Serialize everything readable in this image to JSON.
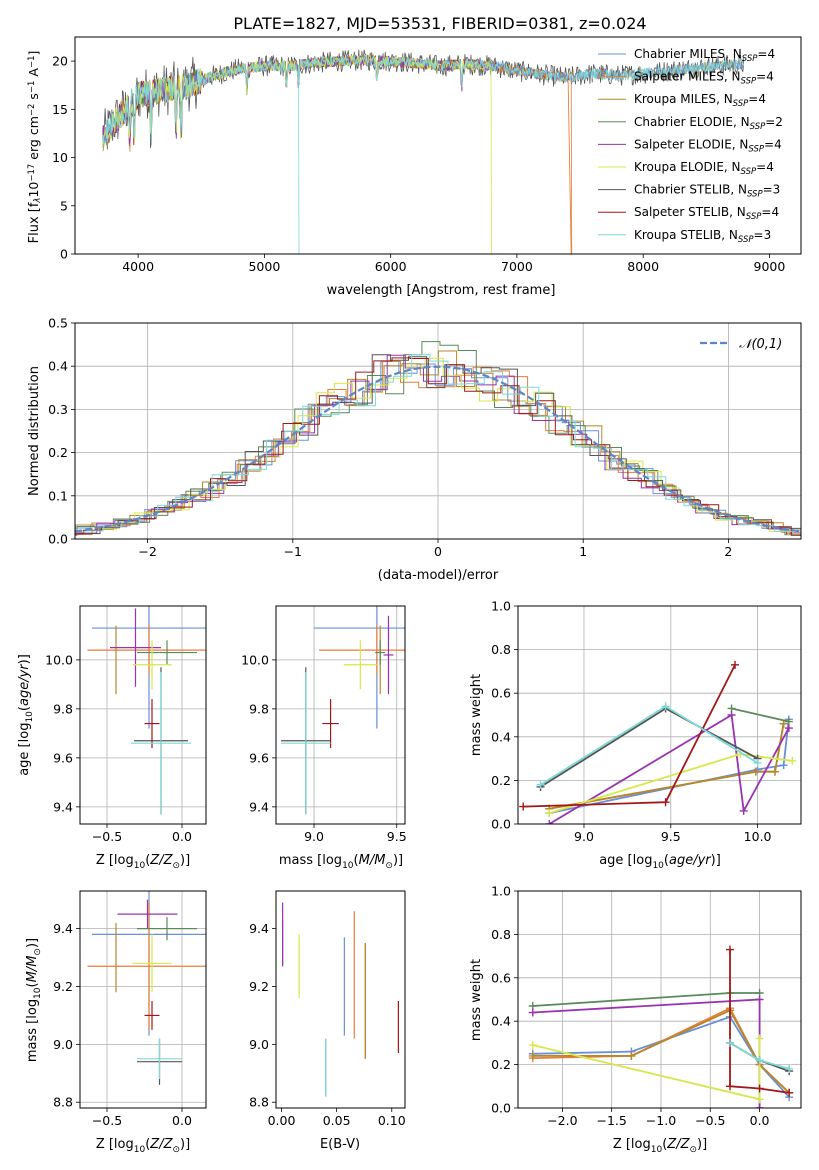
{
  "figure_title": "PLATE=1827, MJD=53531, FIBERID=0381, z=0.024",
  "colors": {
    "Chabrier MILES": "#6a8fd8",
    "Salpeter MILES": "#e87e3a",
    "Kroupa MILES": "#b5892b",
    "Chabrier ELODIE": "#5a8a5a",
    "Salpeter ELODIE": "#9a32b0",
    "Kroupa ELODIE": "#d6e84a",
    "Chabrier STELIB": "#555555",
    "Salpeter STELIB": "#a01818",
    "Kroupa STELIB": "#7fd8d8",
    "grid": "#b0b0b0"
  },
  "chart_data": [
    {
      "id": "spectrum",
      "type": "line",
      "xlabel": "wavelength [Angstrom, rest frame]",
      "ylabel": "Flux [f",
      "xlim": [
        3500,
        9250
      ],
      "ylim": [
        0,
        22.5
      ],
      "xticks": [
        4000,
        5000,
        6000,
        7000,
        8000,
        9000
      ],
      "yticks": [
        0,
        5,
        10,
        15,
        20
      ],
      "grid": false,
      "legend_position": "top-right",
      "legend": [
        {
          "model": "Chabrier MILES",
          "nssp": "4"
        },
        {
          "model": "Salpeter MILES",
          "nssp": "4"
        },
        {
          "model": "Kroupa MILES",
          "nssp": "4"
        },
        {
          "model": "Chabrier ELODIE",
          "nssp": "2"
        },
        {
          "model": "Salpeter ELODIE",
          "nssp": "4"
        },
        {
          "model": "Kroupa ELODIE",
          "nssp": "4"
        },
        {
          "model": "Chabrier STELIB",
          "nssp": "3"
        },
        {
          "model": "Salpeter STELIB",
          "nssp": "4"
        },
        {
          "model": "Kroupa STELIB",
          "nssp": "3"
        }
      ],
      "continuum": [
        [
          3720,
          12.0
        ],
        [
          3800,
          13.5
        ],
        [
          3900,
          15.0
        ],
        [
          4000,
          16.5
        ],
        [
          4200,
          17.0
        ],
        [
          4400,
          17.5
        ],
        [
          4600,
          18.5
        ],
        [
          4800,
          19.2
        ],
        [
          5000,
          19.5
        ],
        [
          5200,
          19.5
        ],
        [
          5400,
          19.8
        ],
        [
          5600,
          20.0
        ],
        [
          5800,
          20.1
        ],
        [
          6000,
          20.0
        ],
        [
          6200,
          19.8
        ],
        [
          6400,
          19.5
        ],
        [
          6600,
          19.7
        ],
        [
          6800,
          19.5
        ],
        [
          7000,
          19.0
        ],
        [
          7200,
          18.6
        ],
        [
          7400,
          18.3
        ],
        [
          7600,
          18.7
        ],
        [
          7800,
          18.5
        ],
        [
          8000,
          18.7
        ],
        [
          8200,
          19.0
        ],
        [
          8400,
          19.3
        ],
        [
          8600,
          19.5
        ],
        [
          8800,
          19.7
        ]
      ],
      "series_ranges": {
        "Chabrier MILES": [
          3720,
          8800
        ],
        "Salpeter MILES": [
          3720,
          7420
        ],
        "Kroupa MILES": [
          3720,
          8800
        ],
        "Chabrier ELODIE": [
          3720,
          6790
        ],
        "Salpeter ELODIE": [
          3720,
          6790
        ],
        "Kroupa ELODIE": [
          3720,
          6790
        ],
        "Chabrier STELIB": [
          3720,
          8800
        ],
        "Salpeter STELIB": [
          3720,
          7420
        ],
        "Kroupa STELIB": [
          3720,
          8800
        ]
      },
      "drops": [
        {
          "series": "Kroupa STELIB",
          "x": 5270
        },
        {
          "series": "Kroupa ELODIE",
          "x": 6795
        },
        {
          "series": "Salpeter MILES",
          "x": 7430
        }
      ]
    },
    {
      "id": "residuals",
      "type": "bar",
      "xlabel": "(data-model)/error",
      "ylabel": "Normed distribution",
      "xlim": [
        -2.5,
        2.5
      ],
      "ylim": [
        0,
        0.5
      ],
      "xticks": [
        -2,
        -1,
        0,
        1,
        2
      ],
      "xticklabels": [
        "−2",
        "−1",
        "0",
        "1",
        "2"
      ],
      "yticks": [
        0,
        0.1,
        0.2,
        0.3,
        0.4,
        0.5
      ],
      "grid": true,
      "legend_label": "𝒩(0,1)",
      "legend_position": "top-right",
      "bin_width": 0.125
    },
    {
      "id": "age_vs_Z",
      "type": "scatter",
      "xlabel": "Z [log",
      "ylabel": "age  [log",
      "xlim": [
        -0.68,
        0.16
      ],
      "ylim": [
        9.33,
        10.22
      ],
      "xticks": [
        -0.5,
        0
      ],
      "xticklabels": [
        "−0.5",
        "0.0"
      ],
      "yticks": [
        9.4,
        9.6,
        9.8,
        10.0
      ],
      "grid": true,
      "points": [
        {
          "series": "Chabrier MILES",
          "x": -0.22,
          "y": 10.13,
          "xerr": 0.38,
          "yerr": 0.41
        },
        {
          "series": "Salpeter MILES",
          "x": -0.22,
          "y": 10.04,
          "xerr": 0.41,
          "yerr": 0.1
        },
        {
          "series": "Kroupa MILES",
          "x": -0.44,
          "y": 10.0,
          "xerr": 0.0,
          "yerr": 0.14
        },
        {
          "series": "Chabrier ELODIE",
          "x": -0.1,
          "y": 10.03,
          "xerr": 0.2,
          "yerr": 0.05
        },
        {
          "series": "Salpeter ELODIE",
          "x": -0.31,
          "y": 10.05,
          "xerr": 0.17,
          "yerr": 0.16
        },
        {
          "series": "Kroupa ELODIE",
          "x": -0.2,
          "y": 9.98,
          "xerr": 0.13,
          "yerr": 0.1
        },
        {
          "series": "Chabrier STELIB",
          "x": -0.14,
          "y": 9.67,
          "xerr": 0.18,
          "yerr": 0.3
        },
        {
          "series": "Salpeter STELIB",
          "x": -0.2,
          "y": 9.74,
          "xerr": 0.05,
          "yerr": 0.1
        },
        {
          "series": "Kroupa STELIB",
          "x": -0.14,
          "y": 9.66,
          "xerr": 0.2,
          "yerr": 0.29
        }
      ]
    },
    {
      "id": "age_vs_mass",
      "type": "scatter",
      "xlabel": "mass [log",
      "ylabel": "",
      "xlim": [
        8.77,
        9.55
      ],
      "ylim": [
        9.33,
        10.22
      ],
      "xticks": [
        9.0,
        9.5
      ],
      "xticklabels": [
        "9.0",
        "9.5"
      ],
      "yticks": [
        9.4,
        9.6,
        9.8,
        10.0
      ],
      "grid": true,
      "points": [
        {
          "series": "Chabrier MILES",
          "x": 9.38,
          "y": 10.13,
          "xerr": 0.38,
          "yerr": 0.41
        },
        {
          "series": "Salpeter MILES",
          "x": 9.38,
          "y": 10.04,
          "xerr": 0.35,
          "yerr": 0.1
        },
        {
          "series": "Kroupa MILES",
          "x": 9.4,
          "y": 10.0,
          "xerr": 0.0,
          "yerr": 0.14
        },
        {
          "series": "Chabrier ELODIE",
          "x": 9.4,
          "y": 10.03,
          "xerr": 0.03,
          "yerr": 0.05
        },
        {
          "series": "Salpeter ELODIE",
          "x": 9.45,
          "y": 10.02,
          "xerr": 0.03,
          "yerr": 0.16
        },
        {
          "series": "Kroupa ELODIE",
          "x": 9.28,
          "y": 9.98,
          "xerr": 0.1,
          "yerr": 0.1
        },
        {
          "series": "Chabrier STELIB",
          "x": 8.95,
          "y": 9.67,
          "xerr": 0.15,
          "yerr": 0.3
        },
        {
          "series": "Salpeter STELIB",
          "x": 9.1,
          "y": 9.74,
          "xerr": 0.05,
          "yerr": 0.1
        },
        {
          "series": "Kroupa STELIB",
          "x": 8.95,
          "y": 9.66,
          "xerr": 0.15,
          "yerr": 0.29
        }
      ]
    },
    {
      "id": "weight_vs_age",
      "type": "line",
      "xlabel": "age  [log",
      "ylabel": "mass weight",
      "xlim": [
        8.62,
        10.25
      ],
      "ylim": [
        0,
        1
      ],
      "xticks": [
        9.0,
        9.5,
        10.0
      ],
      "xticklabels": [
        "9.0",
        "9.5",
        "10.0"
      ],
      "yticks": [
        0,
        0.2,
        0.4,
        0.6,
        0.8,
        1.0
      ],
      "grid": true,
      "series": [
        {
          "name": "Chabrier MILES",
          "x": [
            8.8,
            10.0,
            10.15,
            10.18
          ],
          "y": [
            0.05,
            0.25,
            0.27,
            0.48
          ]
        },
        {
          "name": "Salpeter MILES",
          "x": [
            8.8,
            9.99,
            10.1,
            10.15
          ],
          "y": [
            0.07,
            0.24,
            0.24,
            0.46
          ]
        },
        {
          "name": "Kroupa MILES",
          "x": [
            8.8,
            9.99,
            10.1,
            10.15
          ],
          "y": [
            0.07,
            0.24,
            0.24,
            0.46
          ]
        },
        {
          "name": "Chabrier ELODIE",
          "x": [
            9.85,
            10.18
          ],
          "y": [
            0.53,
            0.47
          ]
        },
        {
          "name": "Salpeter ELODIE",
          "x": [
            8.8,
            9.85,
            9.92,
            10.18
          ],
          "y": [
            0.0,
            0.5,
            0.06,
            0.44
          ]
        },
        {
          "name": "Kroupa ELODIE",
          "x": [
            8.8,
            9.9,
            10.2
          ],
          "y": [
            0.05,
            0.32,
            0.29
          ]
        },
        {
          "name": "Chabrier STELIB",
          "x": [
            8.75,
            9.47,
            10.0
          ],
          "y": [
            0.17,
            0.53,
            0.3
          ]
        },
        {
          "name": "Salpeter STELIB",
          "x": [
            8.65,
            9.47,
            9.87
          ],
          "y": [
            0.08,
            0.1,
            0.73
          ]
        },
        {
          "name": "Kroupa STELIB",
          "x": [
            8.75,
            9.47,
            10.0
          ],
          "y": [
            0.18,
            0.54,
            0.28
          ]
        }
      ]
    },
    {
      "id": "mass_vs_Z",
      "type": "scatter",
      "xlabel": "Z [log",
      "ylabel": "mass [log",
      "xlim": [
        -0.68,
        0.16
      ],
      "ylim": [
        8.78,
        9.53
      ],
      "xticks": [
        -0.5,
        0
      ],
      "xticklabels": [
        "−0.5",
        "0.0"
      ],
      "yticks": [
        8.8,
        9.0,
        9.2,
        9.4
      ],
      "grid": true,
      "points": [
        {
          "series": "Chabrier MILES",
          "x": -0.22,
          "y": 9.38,
          "xerr": 0.38,
          "yerr": 0.35
        },
        {
          "series": "Salpeter MILES",
          "x": -0.22,
          "y": 9.27,
          "xerr": 0.41,
          "yerr": 0.22
        },
        {
          "series": "Kroupa MILES",
          "x": -0.44,
          "y": 9.3,
          "xerr": 0.0,
          "yerr": 0.12
        },
        {
          "series": "Chabrier ELODIE",
          "x": -0.1,
          "y": 9.4,
          "xerr": 0.2,
          "yerr": 0.04
        },
        {
          "series": "Salpeter ELODIE",
          "x": -0.23,
          "y": 9.45,
          "xerr": 0.2,
          "yerr": 0.05
        },
        {
          "series": "Kroupa ELODIE",
          "x": -0.2,
          "y": 9.28,
          "xerr": 0.13,
          "yerr": 0.1
        },
        {
          "series": "Chabrier STELIB",
          "x": -0.15,
          "y": 8.94,
          "xerr": 0.15,
          "yerr": 0.08
        },
        {
          "series": "Salpeter STELIB",
          "x": -0.2,
          "y": 9.1,
          "xerr": 0.05,
          "yerr": 0.05
        },
        {
          "series": "Kroupa STELIB",
          "x": -0.15,
          "y": 8.95,
          "xerr": 0.15,
          "yerr": 0.07
        }
      ]
    },
    {
      "id": "mass_vs_ebv",
      "type": "scatter",
      "xlabel": "E(B-V)",
      "ylabel": "",
      "xlim": [
        -0.005,
        0.112
      ],
      "ylim": [
        8.78,
        9.53
      ],
      "xticks": [
        0.0,
        0.05,
        0.1
      ],
      "xticklabels": [
        "0.00",
        "0.05",
        "0.10"
      ],
      "yticks": [
        8.8,
        9.0,
        9.2,
        9.4
      ],
      "grid": false,
      "points": [
        {
          "series": "Chabrier MILES",
          "x": 0.057,
          "y": 9.2,
          "xerr": 0.0,
          "yerr": 0.17
        },
        {
          "series": "Salpeter MILES",
          "x": 0.076,
          "y": 9.15,
          "xerr": 0.0,
          "yerr": 0.2
        },
        {
          "series": "Kroupa MILES",
          "x": 0.076,
          "y": 9.15,
          "xerr": 0.0,
          "yerr": 0.2
        },
        {
          "series": "Chabrier ELODIE",
          "x": 0.001,
          "y": 9.35,
          "xerr": 0.0,
          "yerr": 0.08
        },
        {
          "series": "Salpeter ELODIE",
          "x": 0.001,
          "y": 9.38,
          "xerr": 0.0,
          "yerr": 0.11
        },
        {
          "series": "Kroupa ELODIE",
          "x": 0.016,
          "y": 9.27,
          "xerr": 0.0,
          "yerr": 0.11
        },
        {
          "series": "Chabrier STELIB",
          "x": 0.04,
          "y": 8.92,
          "xerr": 0.0,
          "yerr": 0.1
        },
        {
          "series": "Salpeter STELIB",
          "x": 0.106,
          "y": 9.06,
          "xerr": 0.0,
          "yerr": 0.09
        },
        {
          "series": "Kroupa STELIB",
          "x": 0.04,
          "y": 8.92,
          "xerr": 0.0,
          "yerr": 0.1
        },
        {
          "series": "Salpeter MILES",
          "x": 0.066,
          "y": 9.24,
          "xerr": 0.0,
          "yerr": 0.22
        }
      ]
    },
    {
      "id": "weight_vs_Z",
      "type": "line",
      "xlabel": "Z [log",
      "ylabel": "mass weight",
      "xlim": [
        -2.45,
        0.42
      ],
      "ylim": [
        0,
        1
      ],
      "xticks": [
        -2.0,
        -1.5,
        -1.0,
        -0.5,
        0.0
      ],
      "xticklabels": [
        "−2.0",
        "−1.5",
        "−1.0",
        "−0.5",
        "0.0"
      ],
      "yticks": [
        0,
        0.2,
        0.4,
        0.6,
        0.8,
        1.0
      ],
      "grid": true,
      "series": [
        {
          "name": "Chabrier MILES",
          "x": [
            -2.3,
            -1.3,
            -0.3,
            0.0,
            0.3
          ],
          "y": [
            0.25,
            0.26,
            0.42,
            0.2,
            0.05
          ]
        },
        {
          "name": "Salpeter MILES",
          "x": [
            -2.3,
            -1.3,
            -0.3,
            0.0,
            0.3
          ],
          "y": [
            0.23,
            0.24,
            0.46,
            0.2,
            0.07
          ]
        },
        {
          "name": "Kroupa MILES",
          "x": [
            -2.3,
            -1.3,
            -0.3,
            0.0,
            0.3
          ],
          "y": [
            0.24,
            0.24,
            0.45,
            0.2,
            0.07
          ]
        },
        {
          "name": "Chabrier ELODIE",
          "x": [
            -2.3,
            -0.3,
            0.0
          ],
          "y": [
            0.47,
            0.53,
            0.53
          ]
        },
        {
          "name": "Salpeter ELODIE",
          "x": [
            -2.3,
            0.0,
            0.0
          ],
          "y": [
            0.44,
            0.5,
            0.0
          ]
        },
        {
          "name": "Kroupa ELODIE",
          "x": [
            -2.3,
            0.0,
            0.0
          ],
          "y": [
            0.29,
            0.04,
            0.32
          ]
        },
        {
          "name": "Chabrier STELIB",
          "x": [
            -0.3,
            0.0,
            0.3
          ],
          "y": [
            0.3,
            0.22,
            0.17
          ]
        },
        {
          "name": "Salpeter STELIB",
          "x": [
            -0.3,
            -0.3,
            0.0,
            0.3
          ],
          "y": [
            0.73,
            0.1,
            0.09,
            0.07
          ]
        },
        {
          "name": "Kroupa STELIB",
          "x": [
            -0.3,
            0.0,
            0.3
          ],
          "y": [
            0.3,
            0.22,
            0.18
          ]
        }
      ]
    }
  ]
}
